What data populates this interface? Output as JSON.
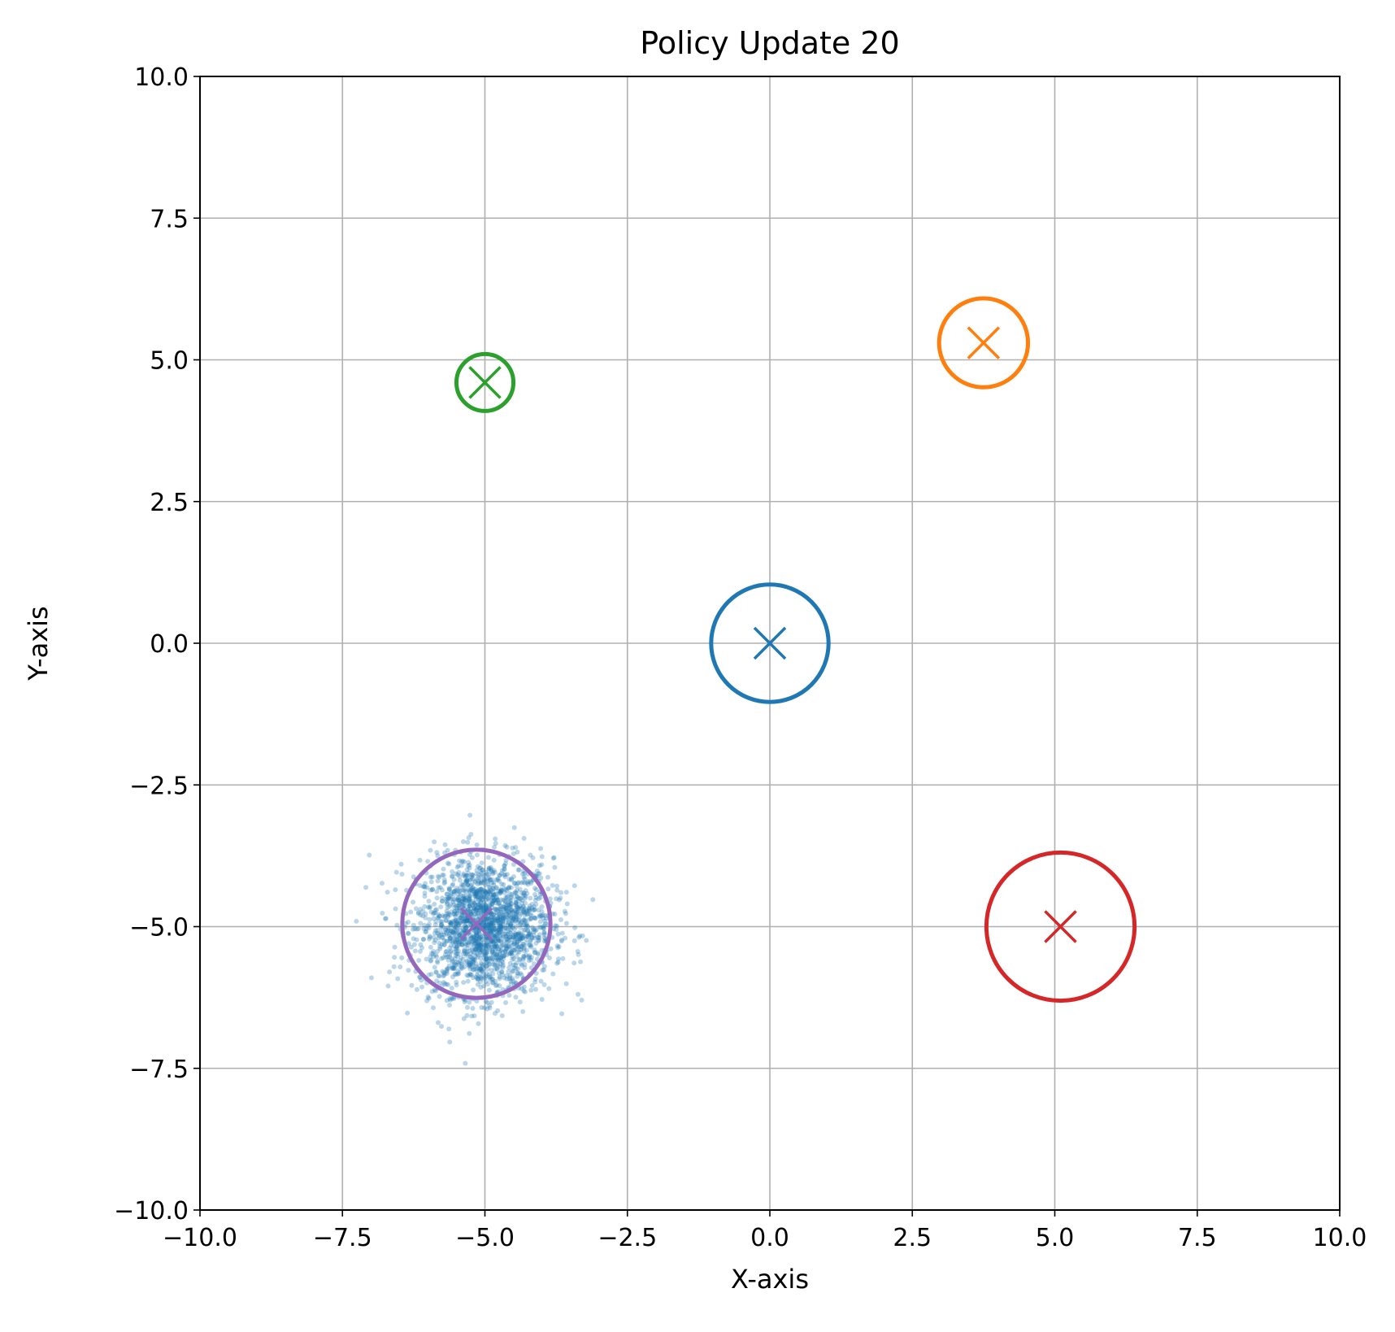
{
  "chart_data": {
    "type": "scatter",
    "title": "Policy Update 20",
    "xlabel": "X-axis",
    "ylabel": "Y-axis",
    "xlim": [
      -10,
      10
    ],
    "ylim": [
      -10,
      10
    ],
    "grid": true,
    "x_ticks": [
      -10,
      -7.5,
      -5,
      -2.5,
      0,
      2.5,
      5,
      7.5,
      10
    ],
    "y_ticks": [
      -10,
      -7.5,
      -5,
      -2.5,
      0,
      2.5,
      5,
      7.5,
      10
    ],
    "x_tick_labels": [
      "−10.0",
      "−7.5",
      "−5.0",
      "−2.5",
      "0.0",
      "2.5",
      "5.0",
      "7.5",
      "10.0"
    ],
    "y_tick_labels": [
      "−10.0",
      "−7.5",
      "−5.0",
      "−2.5",
      "0.0",
      "2.5",
      "5.0",
      "7.5",
      "10.0"
    ],
    "targets": [
      {
        "x": 0.0,
        "y": 0.0,
        "radius": 1.03,
        "color": "#1f77b4"
      },
      {
        "x": 3.75,
        "y": 5.3,
        "radius": 0.78,
        "color": "#ff7f0e"
      },
      {
        "x": -5.0,
        "y": 4.6,
        "radius": 0.5,
        "color": "#2ca02c"
      },
      {
        "x": 5.1,
        "y": -5.0,
        "radius": 1.3,
        "color": "#d62728"
      },
      {
        "x": -5.15,
        "y": -4.95,
        "radius": 1.3,
        "color": "#9467bd"
      }
    ],
    "samples": {
      "color": "#1f77b4",
      "opacity": 0.3,
      "mean": [
        -5.0,
        -5.0
      ],
      "std": [
        0.6,
        0.6
      ],
      "count": 2000
    }
  }
}
